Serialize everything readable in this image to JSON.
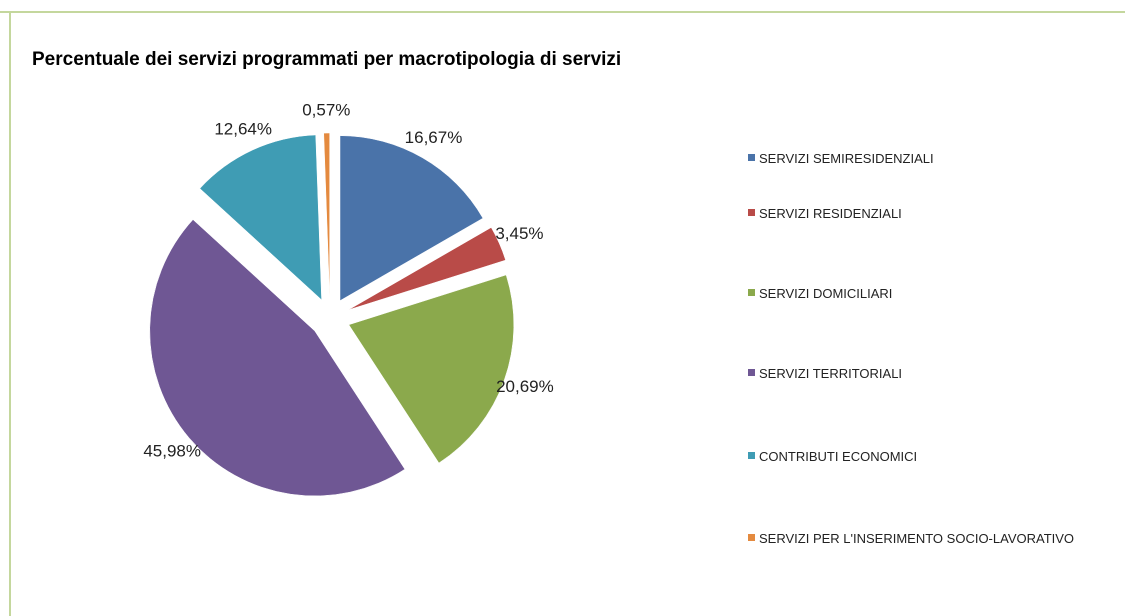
{
  "chart_data": {
    "type": "pie",
    "title": "Percentuale dei servizi programmati  per macrotipologia di servizi",
    "categories": [
      "SERVIZI SEMIRESIDENZIALI",
      "SERVIZI RESIDENZIALI",
      "SERVIZI DOMICILIARI",
      "SERVIZI TERRITORIALI",
      "CONTRIBUTI ECONOMICI",
      "SERVIZI PER L'INSERIMENTO SOCIO-LAVORATIVO"
    ],
    "values": [
      16.67,
      3.45,
      20.69,
      45.98,
      12.64,
      0.57
    ],
    "value_labels": [
      "16,67%",
      "3,45%",
      "20,69%",
      "45,98%",
      "12,64%",
      "0,57%"
    ],
    "colors": [
      "#4a73a9",
      "#b94b48",
      "#8ba94c",
      "#6f5794",
      "#3f9cb4",
      "#e48a3f"
    ],
    "legend": "right"
  }
}
